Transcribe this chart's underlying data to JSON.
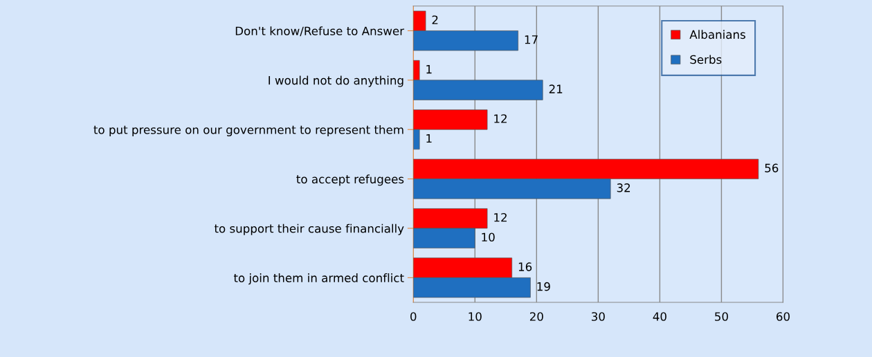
{
  "chart_data": {
    "type": "bar",
    "orientation": "horizontal",
    "categories": [
      "Don't know/Refuse to Answer",
      "I would not do anything",
      "to put pressure on our government to represent them",
      "to accept refugees",
      "to support their cause financially",
      "to join them in armed conflict"
    ],
    "series": [
      {
        "name": "Albanians",
        "color": "#ff0000",
        "values": [
          2,
          1,
          12,
          56,
          12,
          16
        ]
      },
      {
        "name": "Serbs",
        "color": "#1f6fc0",
        "values": [
          17,
          21,
          1,
          32,
          10,
          19
        ]
      }
    ],
    "xlim": [
      0,
      60
    ],
    "xticks": [
      0,
      10,
      20,
      30,
      40,
      50,
      60
    ],
    "grid": "x",
    "legend": "top right",
    "data_labels": true
  }
}
